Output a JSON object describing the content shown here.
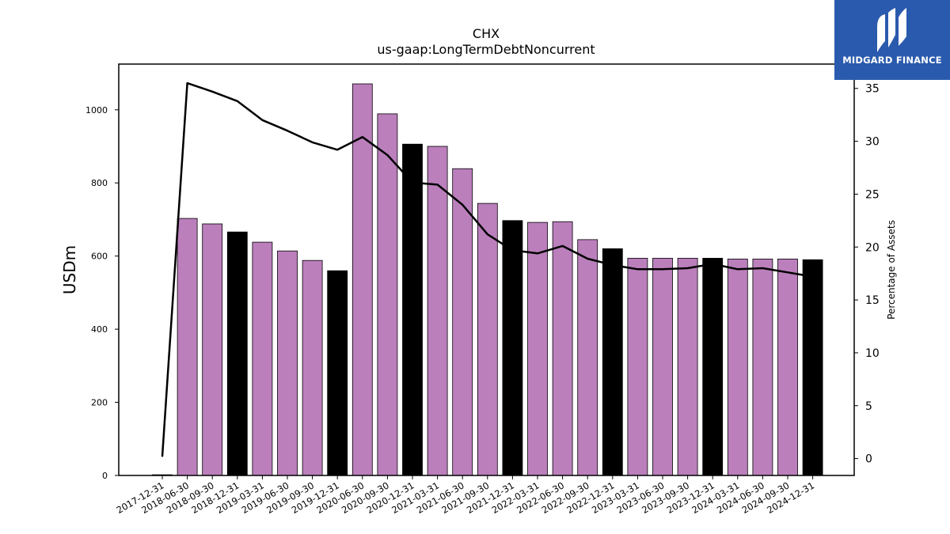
{
  "brand": {
    "name": "MIDGARD FINANCE",
    "bg_color": "#2a5aad",
    "icon": "midgard-logo-icon"
  },
  "chart_data": {
    "type": "bar",
    "title": "CHX",
    "subtitle": "us-gaap:LongTermDebtNoncurrent",
    "ylabel": "USDm",
    "y2label": "Percentage of Assets",
    "ylim": [
      0,
      1125
    ],
    "y2lim": [
      -1.6,
      37.3
    ],
    "yticks": [
      0,
      200,
      400,
      600,
      800,
      1000
    ],
    "y2ticks": [
      0,
      5,
      10,
      15,
      20,
      25,
      30,
      35
    ],
    "categories": [
      "2017-12-31",
      "2018-06-30",
      "2018-09-30",
      "2018-12-31",
      "2019-03-31",
      "2019-06-30",
      "2019-09-30",
      "2019-12-31",
      "2020-06-30",
      "2020-09-30",
      "2020-12-31",
      "2021-03-31",
      "2021-06-30",
      "2021-09-30",
      "2021-12-31",
      "2022-03-31",
      "2022-06-30",
      "2022-09-30",
      "2022-12-31",
      "2023-03-31",
      "2023-06-30",
      "2023-09-30",
      "2023-12-31",
      "2024-03-31",
      "2024-06-30",
      "2024-09-30",
      "2024-12-31"
    ],
    "series": [
      {
        "values": [
          2,
          703,
          688,
          666,
          638,
          614,
          588,
          560,
          1071,
          989,
          906,
          900,
          839,
          744,
          697,
          692,
          694,
          645,
          620,
          594,
          594,
          594,
          594,
          592,
          592,
          592,
          590
        ],
        "colors": [
          "black",
          "purple",
          "purple",
          "black",
          "purple",
          "purple",
          "purple",
          "black",
          "purple",
          "purple",
          "black",
          "purple",
          "purple",
          "purple",
          "black",
          "purple",
          "purple",
          "purple",
          "black",
          "purple",
          "purple",
          "purple",
          "black",
          "purple",
          "purple",
          "purple",
          "black"
        ]
      },
      {
        "axis": "right",
        "type": "line",
        "values": [
          0.2,
          35.5,
          34.7,
          33.8,
          32.0,
          31.0,
          29.9,
          29.2,
          30.4,
          28.7,
          26.1,
          25.9,
          24.0,
          21.2,
          19.7,
          19.4,
          20.1,
          18.9,
          18.3,
          17.9,
          17.9,
          18.0,
          18.4,
          17.9,
          18.0,
          17.6,
          17.2
        ]
      }
    ],
    "colors": {
      "purple": "#bb7fbc",
      "black": "#000000",
      "line": "#000000"
    }
  }
}
